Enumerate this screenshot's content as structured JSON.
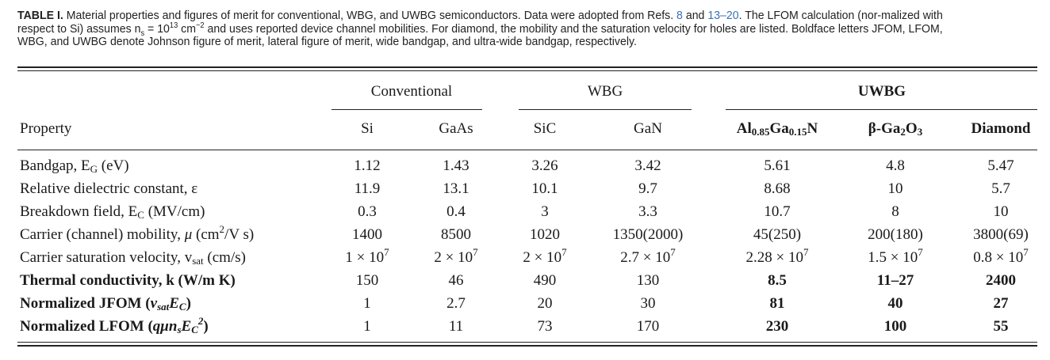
{
  "caption": {
    "label": "TABLE I.",
    "p1": " Material properties and figures of merit for conventional, WBG, and UWBG semiconductors. Data were adopted from Refs. ",
    "ref1": "8",
    "p2": " and ",
    "ref2": "13–20",
    "p3": ". The LFOM calculation (nor-malized with respect to Si) assumes n",
    "ns_sub": "s",
    "p4": " = 10",
    "exp13": "13",
    "p5": " cm",
    "exp_m2": "−2",
    "p6": " and uses reported device channel mobilities. For diamond, the mobility and the saturation velocity for holes are listed. Boldface letters JFOM, LFOM, WBG, and UWBG denote Johnson figure of merit, lateral figure of merit, wide bandgap, and ultra-wide bandgap, respectively."
  },
  "groups": {
    "conventional": "Conventional",
    "wbg": "WBG",
    "uwbg": "UWBG"
  },
  "header": {
    "property": "Property",
    "si": "Si",
    "gaas": "GaAs",
    "sic": "SiC",
    "gan": "GaN",
    "algan_a": "Al",
    "algan_a_sub": "0.85",
    "algan_b": "Ga",
    "algan_b_sub": "0.15",
    "algan_c": "N",
    "ga2o3_a": "β-Ga",
    "ga2o3_a_sub": "2",
    "ga2o3_b": "O",
    "ga2o3_b_sub": "3",
    "diamond": "Diamond"
  },
  "labels": {
    "bandgap": "Bandgap, E",
    "bandgap_sub": "G",
    "bandgap_unit": " (eV)",
    "dielectric": "Relative dielectric constant, ε",
    "breakdown": "Breakdown field, E",
    "breakdown_sub": "C",
    "breakdown_unit": " (MV/cm)",
    "mobility_a": "Carrier (channel) mobility, ",
    "mobility_mu": "μ",
    "mobility_b": " (cm",
    "mobility_sup": "2",
    "mobility_c": "/V s)",
    "velocity": "Carrier saturation velocity, v",
    "velocity_sub": "sat",
    "velocity_unit": " (cm/s)",
    "thermal": "Thermal conductivity, k (W/m K)",
    "jfom_a": "Normalized JFOM (",
    "jfom_v": "v",
    "jfom_v_sub": "sat",
    "jfom_e": "E",
    "jfom_e_sub": "C",
    "jfom_b": ")",
    "lfom_a": "Normalized LFOM (",
    "lfom_q": "qμn",
    "lfom_q_sub": "s",
    "lfom_e": "E",
    "lfom_e_sub": "C",
    "lfom_e_sup": "2",
    "lfom_b": ")"
  },
  "rows": {
    "bandgap": [
      "1.12",
      "1.43",
      "3.26",
      "3.42",
      "5.61",
      "4.8",
      "5.47"
    ],
    "dielectric": [
      "11.9",
      "13.1",
      "10.1",
      "9.7",
      "8.68",
      "10",
      "5.7"
    ],
    "breakdown": [
      "0.3",
      "0.4",
      "3",
      "3.3",
      "10.7",
      "8",
      "10"
    ],
    "mobility": [
      "1400",
      "8500",
      "1020",
      "1350(2000)",
      "45(250)",
      "200(180)",
      "3800(69)"
    ],
    "velocity_mantissa": [
      "1 × 10",
      "2 × 10",
      "2 × 10",
      "2.7 × 10",
      "2.28 × 10",
      "1.5 × 10",
      "0.8 × 10"
    ],
    "velocity_exp": "7",
    "thermal": [
      "150",
      "46",
      "490",
      "130",
      "8.5",
      "11–27",
      "2400"
    ],
    "jfom": [
      "1",
      "2.7",
      "20",
      "30",
      "81",
      "40",
      "27"
    ],
    "lfom": [
      "1",
      "11",
      "73",
      "170",
      "230",
      "100",
      "55"
    ]
  }
}
